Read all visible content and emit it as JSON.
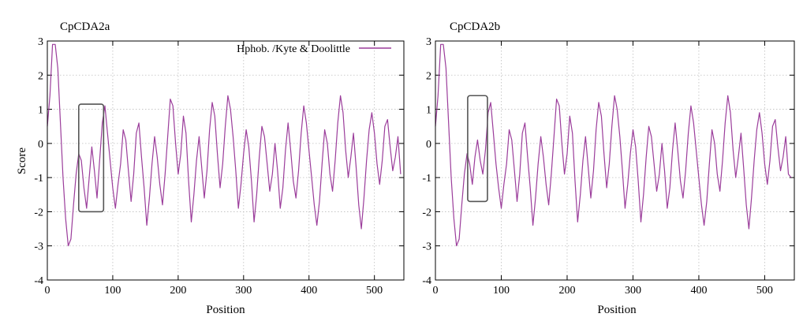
{
  "figure": {
    "panels": [
      {
        "title": "CpCDA2a"
      },
      {
        "title": "CpCDA2b"
      }
    ],
    "ylabel": "Score",
    "xlabel": "Position",
    "legend_label": "Hphob. /Kyte & Doolittle"
  },
  "chart_data": [
    {
      "type": "line",
      "title": "CpCDA2a",
      "xlabel": "Position",
      "ylabel": "Score",
      "xlim": [
        0,
        545
      ],
      "ylim": [
        -4,
        3
      ],
      "x_ticks": [
        0,
        100,
        200,
        300,
        400,
        500
      ],
      "y_ticks": [
        -4,
        -3,
        -2,
        -1,
        0,
        1,
        2,
        3
      ],
      "grid": true,
      "legend_position": "top-right",
      "series_color": "#9b3d9b",
      "series": [
        {
          "name": "Hphob. /Kyte & Doolittle",
          "x": [
            0,
            4,
            8,
            12,
            16,
            20,
            24,
            28,
            32,
            36,
            40,
            44,
            48,
            52,
            56,
            60,
            64,
            68,
            72,
            76,
            80,
            84,
            88,
            92,
            96,
            100,
            104,
            108,
            112,
            116,
            120,
            124,
            128,
            132,
            136,
            140,
            144,
            148,
            152,
            156,
            160,
            164,
            168,
            172,
            176,
            180,
            184,
            188,
            192,
            196,
            200,
            204,
            208,
            212,
            216,
            220,
            224,
            228,
            232,
            236,
            240,
            244,
            248,
            252,
            256,
            260,
            264,
            268,
            272,
            276,
            280,
            284,
            288,
            292,
            296,
            300,
            304,
            308,
            312,
            316,
            320,
            324,
            328,
            332,
            336,
            340,
            344,
            348,
            352,
            356,
            360,
            364,
            368,
            372,
            376,
            380,
            384,
            388,
            392,
            396,
            400,
            404,
            408,
            412,
            416,
            420,
            424,
            428,
            432,
            436,
            440,
            444,
            448,
            452,
            456,
            460,
            464,
            468,
            472,
            476,
            480,
            484,
            488,
            492,
            496,
            500,
            504,
            508,
            512,
            516,
            520,
            524,
            528,
            532,
            536,
            540
          ],
          "values": [
            0.5,
            1.4,
            2.9,
            2.9,
            2.2,
            0.6,
            -1.0,
            -2.2,
            -3.0,
            -2.8,
            -1.8,
            -0.9,
            -0.3,
            -0.5,
            -1.3,
            -1.9,
            -1.0,
            -0.1,
            -0.8,
            -1.6,
            -0.5,
            0.6,
            1.1,
            0.3,
            -0.5,
            -1.3,
            -1.9,
            -1.2,
            -0.6,
            0.4,
            0.1,
            -0.8,
            -1.7,
            -0.9,
            0.3,
            0.6,
            -0.4,
            -1.3,
            -2.4,
            -1.6,
            -0.6,
            0.2,
            -0.4,
            -1.2,
            -1.8,
            -0.9,
            0.2,
            1.3,
            1.1,
            0.0,
            -0.9,
            -0.3,
            0.8,
            0.3,
            -1.1,
            -2.3,
            -1.5,
            -0.5,
            0.2,
            -0.7,
            -1.6,
            -0.8,
            0.4,
            1.2,
            0.8,
            -0.3,
            -1.3,
            -0.6,
            0.5,
            1.4,
            1.0,
            0.2,
            -0.8,
            -1.9,
            -1.2,
            -0.3,
            0.4,
            -0.1,
            -1.1,
            -2.3,
            -1.5,
            -0.4,
            0.5,
            0.2,
            -0.6,
            -1.4,
            -0.9,
            0.0,
            -0.8,
            -1.9,
            -1.3,
            -0.2,
            0.6,
            -0.2,
            -1.1,
            -1.6,
            -0.8,
            0.3,
            1.1,
            0.6,
            -0.2,
            -1.0,
            -1.8,
            -2.4,
            -1.7,
            -0.6,
            0.4,
            0.0,
            -0.9,
            -1.4,
            -0.5,
            0.6,
            1.4,
            0.9,
            -0.2,
            -1.0,
            -0.4,
            0.3,
            -0.7,
            -1.8,
            -2.5,
            -1.6,
            -0.5,
            0.4,
            0.9,
            0.3,
            -0.6,
            -1.2,
            -0.5,
            0.5,
            0.7,
            -0.1,
            -0.8,
            -0.4,
            0.2,
            -0.9
          ]
        }
      ],
      "annotations": [
        {
          "type": "box",
          "x_range": [
            48,
            86
          ],
          "y_range": [
            -2.0,
            1.15
          ]
        }
      ]
    },
    {
      "type": "line",
      "title": "CpCDA2b",
      "xlabel": "Position",
      "ylabel": "",
      "xlim": [
        0,
        545
      ],
      "ylim": [
        -4,
        3
      ],
      "x_ticks": [
        0,
        100,
        200,
        300,
        400,
        500
      ],
      "y_ticks": [
        -4,
        -3,
        -2,
        -1,
        0,
        1,
        2,
        3
      ],
      "grid": true,
      "series_color": "#9b3d9b",
      "series": [
        {
          "x": [
            0,
            4,
            8,
            12,
            16,
            20,
            24,
            28,
            32,
            36,
            40,
            44,
            48,
            52,
            56,
            60,
            64,
            68,
            72,
            76,
            80,
            84,
            88,
            92,
            96,
            100,
            104,
            108,
            112,
            116,
            120,
            124,
            128,
            132,
            136,
            140,
            144,
            148,
            152,
            156,
            160,
            164,
            168,
            172,
            176,
            180,
            184,
            188,
            192,
            196,
            200,
            204,
            208,
            212,
            216,
            220,
            224,
            228,
            232,
            236,
            240,
            244,
            248,
            252,
            256,
            260,
            264,
            268,
            272,
            276,
            280,
            284,
            288,
            292,
            296,
            300,
            304,
            308,
            312,
            316,
            320,
            324,
            328,
            332,
            336,
            340,
            344,
            348,
            352,
            356,
            360,
            364,
            368,
            372,
            376,
            380,
            384,
            388,
            392,
            396,
            400,
            404,
            408,
            412,
            416,
            420,
            424,
            428,
            432,
            436,
            440,
            444,
            448,
            452,
            456,
            460,
            464,
            468,
            472,
            476,
            480,
            484,
            488,
            492,
            496,
            500,
            504,
            508,
            512,
            516,
            520,
            524,
            528,
            532,
            536,
            540
          ],
          "values": [
            0.5,
            1.4,
            2.9,
            2.9,
            2.2,
            0.6,
            -1.0,
            -2.2,
            -3.0,
            -2.8,
            -1.8,
            -0.9,
            -0.3,
            -0.6,
            -1.2,
            -0.4,
            0.1,
            -0.5,
            -0.9,
            -0.2,
            0.9,
            1.2,
            0.3,
            -0.6,
            -1.3,
            -1.9,
            -1.2,
            -0.6,
            0.4,
            0.1,
            -0.8,
            -1.7,
            -0.9,
            0.3,
            0.6,
            -0.4,
            -1.3,
            -2.4,
            -1.6,
            -0.6,
            0.2,
            -0.4,
            -1.2,
            -1.8,
            -0.9,
            0.2,
            1.3,
            1.1,
            0.0,
            -0.9,
            -0.3,
            0.8,
            0.3,
            -1.1,
            -2.3,
            -1.5,
            -0.5,
            0.2,
            -0.7,
            -1.6,
            -0.8,
            0.4,
            1.2,
            0.8,
            -0.3,
            -1.3,
            -0.6,
            0.5,
            1.4,
            1.0,
            0.2,
            -0.8,
            -1.9,
            -1.2,
            -0.3,
            0.4,
            -0.1,
            -1.1,
            -2.3,
            -1.5,
            -0.4,
            0.5,
            0.2,
            -0.6,
            -1.4,
            -0.9,
            0.0,
            -0.8,
            -1.9,
            -1.3,
            -0.2,
            0.6,
            -0.2,
            -1.1,
            -1.6,
            -0.8,
            0.3,
            1.1,
            0.6,
            -0.2,
            -1.0,
            -1.8,
            -2.4,
            -1.7,
            -0.6,
            0.4,
            0.0,
            -0.9,
            -1.4,
            -0.5,
            0.6,
            1.4,
            0.9,
            -0.2,
            -1.0,
            -0.4,
            0.3,
            -0.7,
            -1.8,
            -2.5,
            -1.6,
            -0.5,
            0.4,
            0.9,
            0.3,
            -0.6,
            -1.2,
            -0.5,
            0.5,
            0.7,
            -0.1,
            -0.8,
            -0.4,
            0.2,
            -0.9,
            -1.0
          ]
        }
      ],
      "annotations": [
        {
          "type": "box",
          "x_range": [
            49,
            79
          ],
          "y_range": [
            -1.7,
            1.4
          ]
        }
      ]
    }
  ]
}
